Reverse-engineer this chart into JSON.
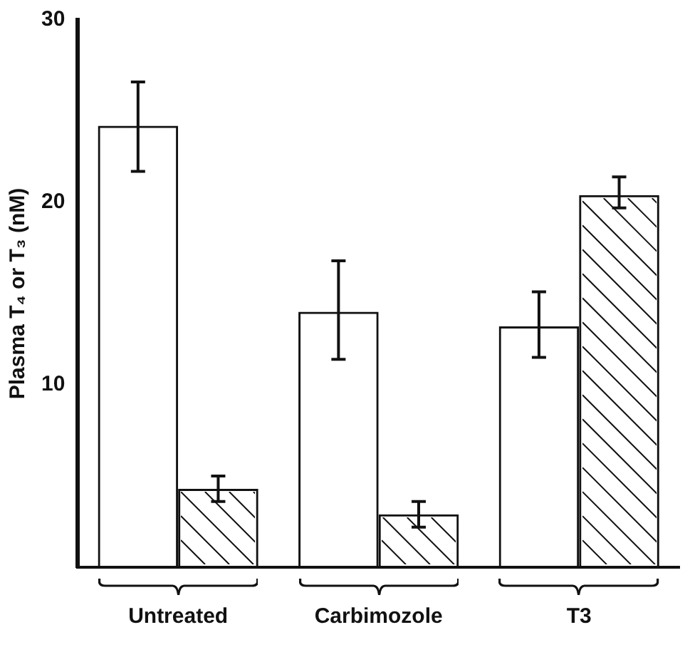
{
  "chart_data": {
    "type": "bar",
    "ylabel": "Plasma T₄ or T₃ (nM)",
    "categories": [
      "Untreated",
      "Carbimozole",
      "T3"
    ],
    "series": [
      {
        "color": "#111111",
        "values": [
          24.2,
          14.0,
          13.2
        ],
        "errors": [
          [
            21.7,
            26.6
          ],
          [
            11.4,
            16.8
          ],
          [
            11.5,
            15.1
          ]
        ]
      },
      {
        "color": "#111111",
        "values": [
          4.3,
          2.9,
          20.4
        ],
        "errors": [
          [
            3.6,
            5.0
          ],
          [
            2.2,
            3.6
          ],
          [
            19.7,
            21.4
          ]
        ]
      }
    ],
    "ylim": [
      0,
      30
    ],
    "yticks": [
      10,
      20,
      30
    ],
    "grid": false,
    "legend": false
  }
}
